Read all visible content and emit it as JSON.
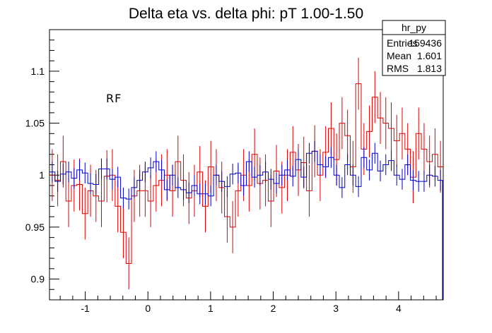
{
  "chart_data": {
    "type": "line",
    "title": "Delta eta vs. delta phi: pT 1.00-1.50",
    "xlim": [
      -1.5708,
      4.7124
    ],
    "ylim": [
      0.88,
      1.14
    ],
    "xticks": [
      -1,
      0,
      1,
      2,
      3,
      4
    ],
    "yticks": [
      0.9,
      0.95,
      1,
      1.05,
      1.1
    ],
    "ytick_labels": [
      "0.9",
      "0.95",
      "1",
      "1.05",
      "1.1"
    ],
    "xtick_labels": [
      "-1",
      "0",
      "1",
      "2",
      "3",
      "4"
    ],
    "grid": false,
    "annotation": "RF",
    "stats_box": {
      "name": "hr_py",
      "rows": [
        {
          "label": "Entries",
          "value": "159436"
        },
        {
          "label": "Mean",
          "value": "1.601"
        },
        {
          "label": "RMS",
          "value": "1.813"
        }
      ]
    },
    "bins": 72,
    "series": [
      {
        "color": "#0000cc",
        "values": [
          1.003,
          0.994,
          1.001,
          1.003,
          0.997,
          1.005,
          1.002,
          0.992,
          0.991,
          1.006,
          1.006,
          0.996,
          0.998,
          0.978,
          0.977,
          0.988,
          0.995,
          1.003,
          1.007,
          1.013,
          1.005,
          0.986,
          1.0,
          0.988,
          0.986,
          0.983,
          0.99,
          0.982,
          0.982,
          0.98,
          1.0,
          0.994,
          0.989,
          1.001,
          1.002,
          0.99,
          1.013,
          0.998,
          1.0,
          1.003,
          0.996,
          0.992,
          1.0,
          1.005,
          0.999,
          1.015,
          0.998,
          1.021,
          1.023,
          1.01,
          1.008,
          1.017,
          1.0,
          0.988,
          1.01,
          1.0,
          0.989,
          1.017,
          1.005,
          1.021,
          1.004,
          1.01,
          1.014,
          1.0,
          0.996,
          1.01,
          0.995,
          0.994,
          0.994,
          1.0,
          0.999,
          0.995
        ],
        "errors": [
          0.01,
          0.01,
          0.01,
          0.01,
          0.01,
          0.01,
          0.01,
          0.01,
          0.01,
          0.01,
          0.01,
          0.01,
          0.01,
          0.01,
          0.01,
          0.01,
          0.01,
          0.01,
          0.01,
          0.01,
          0.01,
          0.01,
          0.01,
          0.01,
          0.01,
          0.01,
          0.01,
          0.01,
          0.01,
          0.01,
          0.01,
          0.01,
          0.01,
          0.01,
          0.01,
          0.01,
          0.01,
          0.01,
          0.01,
          0.01,
          0.01,
          0.01,
          0.01,
          0.01,
          0.01,
          0.01,
          0.01,
          0.01,
          0.01,
          0.01,
          0.01,
          0.01,
          0.01,
          0.01,
          0.01,
          0.01,
          0.01,
          0.01,
          0.01,
          0.01,
          0.01,
          0.01,
          0.01,
          0.01,
          0.01,
          0.01,
          0.01,
          0.01,
          0.01,
          0.01,
          0.01,
          0.01
        ]
      },
      {
        "color": "#dd0000",
        "values": [
          1.0,
          0.995,
          1.013,
          0.975,
          0.99,
          0.991,
          0.963,
          0.985,
          0.98,
          0.975,
          0.999,
          1.0,
          0.97,
          0.945,
          0.915,
          0.98,
          0.985,
          0.985,
          0.975,
          0.99,
          0.995,
          1.0,
          0.985,
          1.013,
          0.995,
          0.978,
          0.985,
          1.003,
          0.97,
          1.008,
          1.0,
          0.988,
          0.96,
          0.95,
          0.985,
          1.0,
          0.99,
          1.02,
          0.992,
          0.995,
          0.975,
          1.004,
          0.988,
          1.0,
          1.022,
          1.005,
          1.012,
          0.985,
          1.023,
          1.0,
          1.022,
          1.045,
          1.015,
          1.05,
          1.038,
          1.008,
          1.088,
          1.025,
          1.042,
          1.075,
          1.055,
          1.05,
          1.045,
          1.033,
          1.04,
          1.025,
          0.998,
          1.04,
          1.025,
          1.013,
          1.02,
          1.008
        ]
      }
    ]
  }
}
